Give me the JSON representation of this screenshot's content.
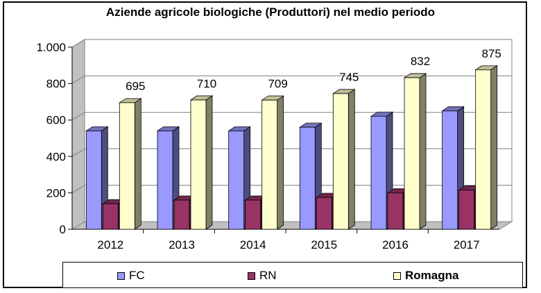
{
  "chart_data": {
    "type": "bar",
    "title": "Aziende agricole biologiche (Produttori) nel medio periodo",
    "categories": [
      "2012",
      "2013",
      "2014",
      "2015",
      "2016",
      "2017"
    ],
    "series": [
      {
        "name": "FC",
        "values": [
          540,
          540,
          540,
          560,
          620,
          650
        ],
        "color": "#9999ff"
      },
      {
        "name": "RN",
        "values": [
          140,
          160,
          160,
          175,
          200,
          215
        ],
        "color": "#993366"
      },
      {
        "name": "Romagna",
        "values": [
          695,
          710,
          709,
          745,
          832,
          875
        ],
        "color": "#ffffcc"
      }
    ],
    "data_labels_series": "Romagna",
    "data_labels": [
      "695",
      "710",
      "709",
      "745",
      "832",
      "875"
    ],
    "ylim": [
      0,
      1000
    ],
    "yticks": [
      0,
      200,
      400,
      600,
      800,
      1000
    ],
    "ytick_labels": [
      "0",
      "200",
      "400",
      "600",
      "800",
      "1.000"
    ],
    "grid": true,
    "legend_position": "bottom",
    "style": "3d-clustered-columns"
  }
}
